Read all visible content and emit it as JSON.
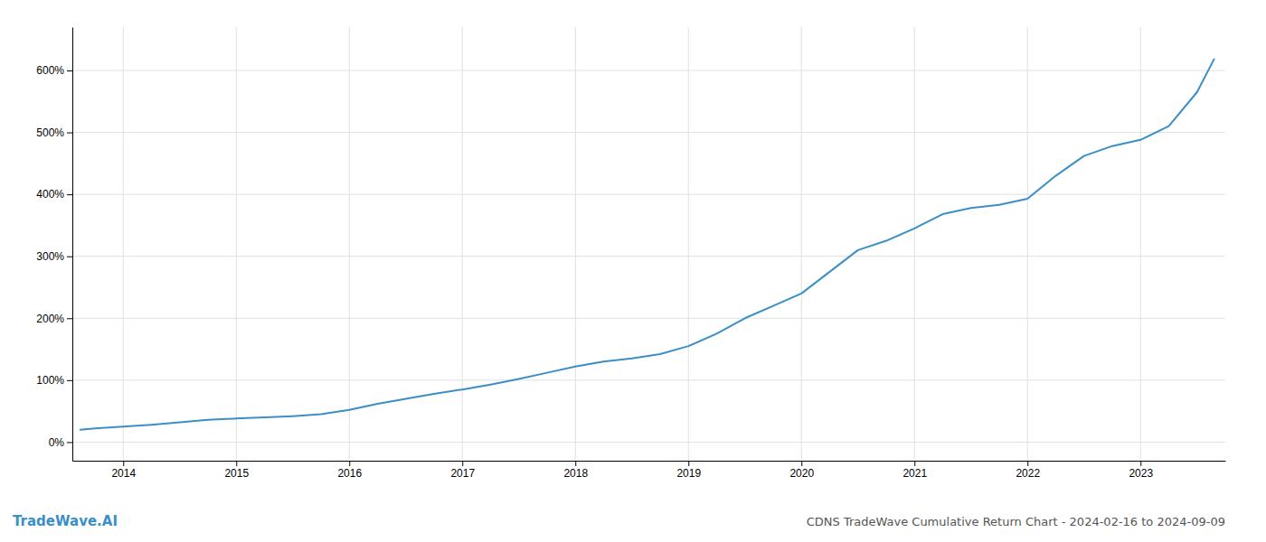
{
  "chart_data": {
    "type": "line",
    "title": "CDNS TradeWave Cumulative Return Chart - 2024-02-16 to 2024-09-09",
    "annotations": [
      "TradeWave.AI"
    ],
    "color": "#3a8fc7",
    "x": [
      2013.62,
      2013.75,
      2014.0,
      2014.25,
      2014.5,
      2014.75,
      2015.0,
      2015.25,
      2015.5,
      2015.75,
      2016.0,
      2016.25,
      2016.5,
      2016.75,
      2017.0,
      2017.25,
      2017.5,
      2017.75,
      2018.0,
      2018.25,
      2018.5,
      2018.75,
      2019.0,
      2019.25,
      2019.5,
      2019.75,
      2020.0,
      2020.25,
      2020.5,
      2020.75,
      2021.0,
      2021.25,
      2021.5,
      2021.75,
      2022.0,
      2022.25,
      2022.5,
      2022.75,
      2023.0,
      2023.25,
      2023.5,
      2023.65
    ],
    "values": [
      20,
      22,
      25,
      28,
      32,
      36,
      38,
      40,
      42,
      45,
      52,
      62,
      70,
      78,
      85,
      93,
      102,
      112,
      122,
      130,
      135,
      142,
      155,
      175,
      200,
      220,
      240,
      275,
      310,
      325,
      345,
      368,
      378,
      383,
      393,
      430,
      462,
      478,
      488,
      510,
      565,
      618
    ],
    "xlim": [
      2013.55,
      2023.75
    ],
    "xticks": [
      2014,
      2015,
      2016,
      2017,
      2018,
      2019,
      2020,
      2021,
      2022,
      2023
    ],
    "ylim": [
      -30,
      670
    ],
    "yticks": [
      {
        "value": 0,
        "label": "0%"
      },
      {
        "value": 100,
        "label": "100%"
      },
      {
        "value": 200,
        "label": "200%"
      },
      {
        "value": 300,
        "label": "300%"
      },
      {
        "value": 400,
        "label": "400%"
      },
      {
        "value": 500,
        "label": "500%"
      },
      {
        "value": 600,
        "label": "600%"
      }
    ],
    "grid": true
  }
}
